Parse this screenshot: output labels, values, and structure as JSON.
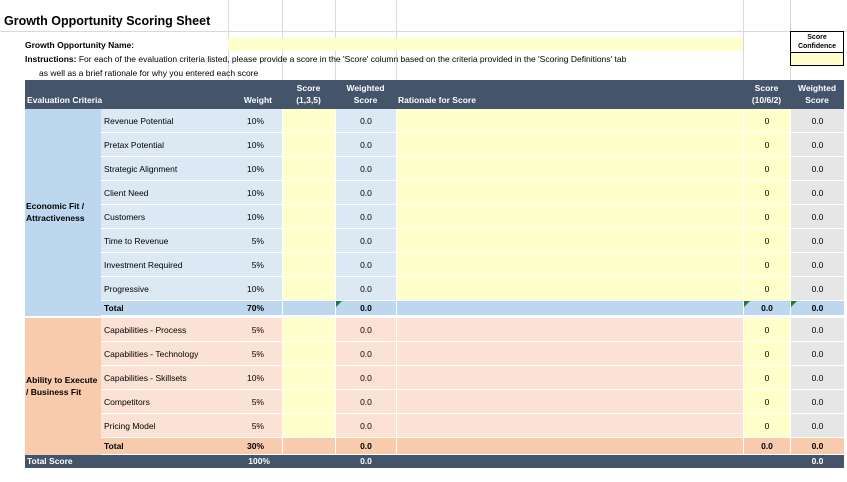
{
  "sheet": {
    "title": "Growth Opportunity Scoring Sheet",
    "name_label": "Growth Opportunity Name:",
    "instructions_label": "Instructions:",
    "instructions_line1": " For each of the evaluation criteria listed, please provide a score in the 'Score' column based on the criteria provided in the 'Scoring Definitions' tab",
    "instructions_line2": "as well as a brief rationale for why you entered each score",
    "score_confidence_box": "Score\nConfidence"
  },
  "headers": {
    "criteria": "Evaluation Criteria",
    "weight": "Weight",
    "score": "Score\n(1,3,5)",
    "weighted": "Weighted\nScore",
    "rationale": "Rationale for Score",
    "conf_score": "Score\n(10/6/2)",
    "conf_weighted": "Weighted\nScore"
  },
  "sections": [
    {
      "group": "Economic Fit / Attractiveness",
      "rows": [
        {
          "label": "Revenue Potential",
          "weight": "10%",
          "weighted": "0.0",
          "conf": "0",
          "conf_w": "0.0"
        },
        {
          "label": "Pretax Potential",
          "weight": "10%",
          "weighted": "0.0",
          "conf": "0",
          "conf_w": "0.0"
        },
        {
          "label": "Strategic Alignment",
          "weight": "10%",
          "weighted": "0.0",
          "conf": "0",
          "conf_w": "0.0"
        },
        {
          "label": "Client Need",
          "weight": "10%",
          "weighted": "0.0",
          "conf": "0",
          "conf_w": "0.0"
        },
        {
          "label": "Customers",
          "weight": "10%",
          "weighted": "0.0",
          "conf": "0",
          "conf_w": "0.0"
        },
        {
          "label": "Time to Revenue",
          "weight": "5%",
          "weighted": "0.0",
          "conf": "0",
          "conf_w": "0.0"
        },
        {
          "label": "Investment Required",
          "weight": "5%",
          "weighted": "0.0",
          "conf": "0",
          "conf_w": "0.0"
        },
        {
          "label": "Progressive",
          "weight": "10%",
          "weighted": "0.0",
          "conf": "0",
          "conf_w": "0.0"
        }
      ],
      "total": {
        "label": "Total",
        "weight": "70%",
        "weighted": "0.0",
        "conf": "0.0",
        "conf_w": "0.0"
      }
    },
    {
      "group": "Ability to Execute / Business Fit",
      "rows": [
        {
          "label": "Capabilities - Process",
          "weight": "5%",
          "weighted": "0.0",
          "conf": "0",
          "conf_w": "0.0"
        },
        {
          "label": "Capabilities - Technology",
          "weight": "5%",
          "weighted": "0.0",
          "conf": "0",
          "conf_w": "0.0"
        },
        {
          "label": "Capabilities - Skillsets",
          "weight": "10%",
          "weighted": "0.0",
          "conf": "0",
          "conf_w": "0.0"
        },
        {
          "label": "Competitors",
          "weight": "5%",
          "weighted": "0.0",
          "conf": "0",
          "conf_w": "0.0"
        },
        {
          "label": "Pricing Model",
          "weight": "5%",
          "weighted": "0.0",
          "conf": "0",
          "conf_w": "0.0"
        }
      ],
      "total": {
        "label": "Total",
        "weight": "30%",
        "weighted": "0.0",
        "conf": "0.0",
        "conf_w": "0.0"
      }
    }
  ],
  "grand_total": {
    "label": "Total Score",
    "weight": "100%",
    "weighted": "0.0",
    "conf_w": "0.0"
  }
}
